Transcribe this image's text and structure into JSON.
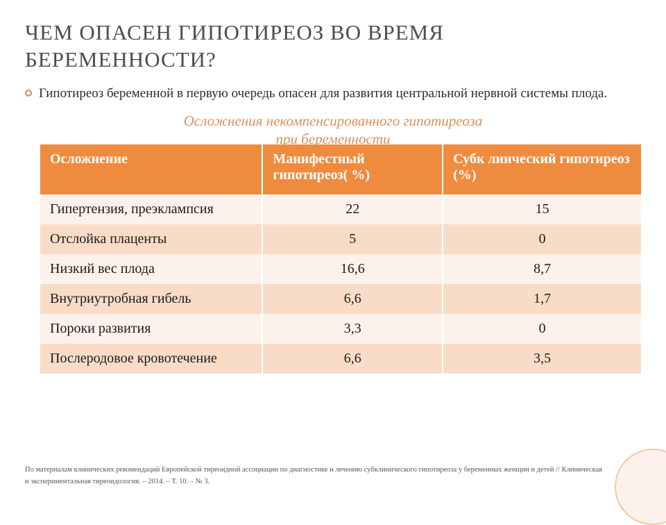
{
  "title": "ЧЕМ ОПАСЕН ГИПОТИРЕОЗ ВО ВРЕМЯ БЕРЕМЕННОСТИ?",
  "bullet": "Гипотиреоз беременной  в первую очередь опасен для развития  центральной нервной системы  плода.",
  "subtitle_line1": "Осложнения некомпенсированного   гипотиреоза",
  "subtitle_line2": "при беременности",
  "table": {
    "columns": [
      "Осложнение",
      "Манифестный гипотиреоз( %)",
      "Субк линческий гипотиреоз (%)"
    ],
    "rows": [
      {
        "name": "Гипертензия, преэклампсия",
        "a": "22",
        "b": "15"
      },
      {
        "name": "Отслойка плаценты",
        "a": "5",
        "b": "0"
      },
      {
        "name": "Низкий вес плода",
        "a": "16,6",
        "b": "8,7"
      },
      {
        "name": "Внутриутробная гибель",
        "a": "6,6",
        "b": "1,7"
      },
      {
        "name": "Пороки развития",
        "a": "3,3",
        "b": "0"
      },
      {
        "name": "Послеродовое кровотечение",
        "a": "6,6",
        "b": "3,5"
      }
    ],
    "header_bg": "#ef8b3f",
    "header_fg": "#ffffff",
    "band_light": "#fdf2eb",
    "band_dark": "#f9dcc7",
    "font_size": 20
  },
  "footnote": "По материалам клинических рекомендаций Европейской тиреоидной ассоциации по диагностике и лечению субклинического гипотиреоза у беременных женщин и детей // Клиническая и экспериментальная тиреоидология. – 2014. – Т. 10. – № 3.",
  "colors": {
    "title": "#4d4d4d",
    "accent": "#d9915c",
    "text": "#1a1a1a",
    "corner_fill": "#fdf2eb",
    "corner_border": "#f3c9a7"
  }
}
